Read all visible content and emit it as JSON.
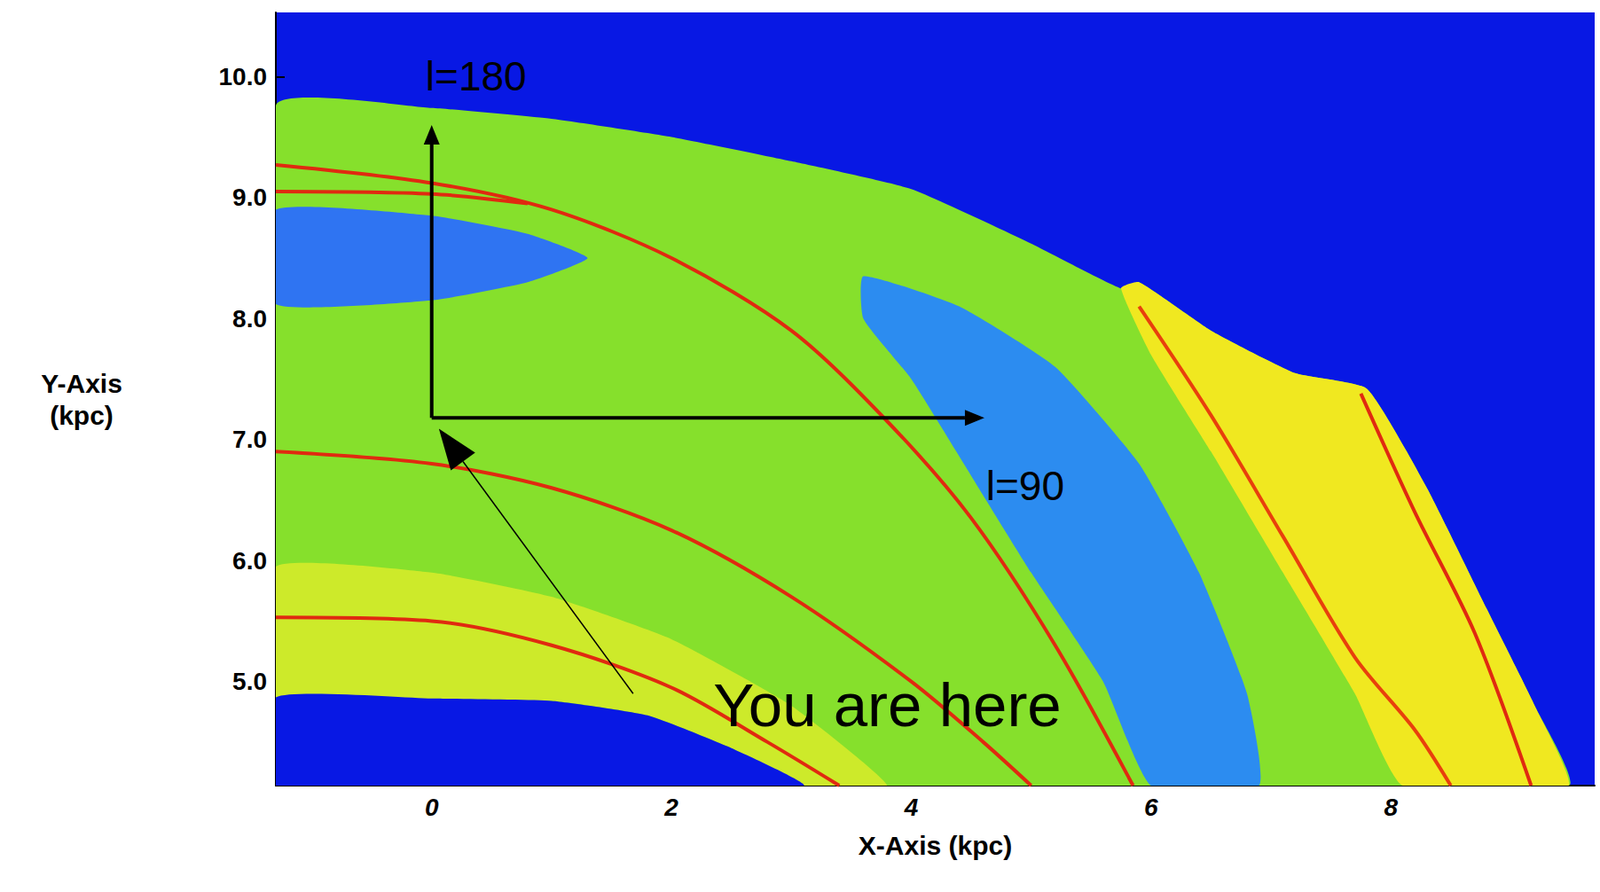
{
  "chart_data": {
    "type": "line",
    "xlabel": "X-Axis (kpc)",
    "ylabel": "Y-Axis (kpc)",
    "xlim": [
      -1.3,
      9.7
    ],
    "ylim": [
      4.14,
      10.53
    ],
    "xticks": [
      0,
      2,
      4,
      6,
      8
    ],
    "yticks": [
      {
        "value": 5,
        "label": "5.0"
      },
      {
        "value": 6,
        "label": "6.0"
      },
      {
        "value": 7,
        "label": "7.0"
      },
      {
        "value": 8,
        "label": "8.0"
      },
      {
        "value": 9,
        "label": "9.0"
      },
      {
        "value": 10,
        "label": "10.0"
      }
    ],
    "grid": false,
    "regions": [
      {
        "color": "#86e02c",
        "x": [
          -1.3,
          0,
          1,
          2,
          3,
          4,
          5,
          5.75,
          5.9,
          6.5,
          7.2,
          7.8,
          8.3,
          8.8,
          9.2,
          9.48,
          -1.3
        ],
        "values": [
          9.76,
          9.74,
          9.65,
          9.5,
          9.3,
          9.07,
          8.62,
          8.25,
          8.3,
          7.9,
          7.55,
          7.42,
          6.6,
          5.6,
          4.8,
          4.14,
          4.14
        ]
      },
      {
        "color": "#cdea2a",
        "x": [
          -1.3,
          0,
          1,
          2,
          3,
          3.8,
          3.1,
          2.5,
          1.8,
          1,
          -1.3
        ],
        "values": [
          5.95,
          5.9,
          5.7,
          5.35,
          4.8,
          4.14,
          4.14,
          4.45,
          4.72,
          4.84,
          4.87
        ]
      },
      {
        "color": "#0818e4",
        "x": [
          -1.3,
          0,
          1,
          1.8,
          2.5,
          3.1,
          -1.3
        ],
        "values": [
          4.87,
          4.86,
          4.84,
          4.72,
          4.45,
          4.14,
          4.14
        ]
      },
      {
        "color": "#2f74f2",
        "x": [
          -1.3,
          0,
          0.8,
          1.3,
          0.8,
          0,
          -1.3
        ],
        "values": [
          8.9,
          8.85,
          8.7,
          8.5,
          8.3,
          8.15,
          8.12
        ]
      },
      {
        "color": "#2c8cf0",
        "x": [
          3.6,
          4.4,
          5.2,
          5.9,
          6.4,
          6.8,
          6.9,
          6.0,
          5.6,
          5.0,
          4.5,
          4.0,
          3.6
        ],
        "values": [
          8.35,
          8.1,
          7.6,
          6.8,
          5.9,
          4.9,
          4.14,
          4.14,
          5.0,
          5.9,
          6.7,
          7.5,
          8.0
        ]
      },
      {
        "color": "#f0e820",
        "x": [
          5.75,
          5.9,
          6.5,
          7.2,
          7.8,
          8.3,
          8.8,
          9.2,
          9.48,
          8.1,
          7.7,
          7.1,
          6.5,
          6.0
        ],
        "values": [
          8.25,
          8.3,
          7.9,
          7.55,
          7.42,
          6.6,
          5.6,
          4.8,
          4.14,
          4.14,
          4.9,
          5.9,
          6.9,
          7.7
        ]
      }
    ],
    "series": [
      {
        "color": "#e02a10",
        "x": [
          -1.3,
          0,
          1,
          2,
          3,
          3.8,
          4.5,
          5.2,
          5.85
        ],
        "values": [
          9.27,
          9.12,
          8.9,
          8.5,
          7.9,
          7.15,
          6.35,
          5.3,
          4.14
        ]
      },
      {
        "color": "#e02a10",
        "x": [
          -1.3,
          0,
          0.8
        ],
        "values": [
          9.05,
          9.03,
          8.95
        ]
      },
      {
        "color": "#e02a10",
        "x": [
          -1.3,
          0,
          1,
          2,
          3,
          4,
          4.6,
          5.0
        ],
        "values": [
          6.9,
          6.8,
          6.6,
          6.25,
          5.7,
          5.0,
          4.5,
          4.14
        ]
      },
      {
        "color": "#e02a10",
        "x": [
          -1.3,
          0,
          1,
          2,
          2.8,
          3.4
        ],
        "values": [
          5.53,
          5.5,
          5.3,
          4.95,
          4.5,
          4.14
        ]
      },
      {
        "color": "#e8400c",
        "x": [
          5.9,
          6.5,
          7.1,
          7.7,
          8.2,
          8.5
        ],
        "values": [
          8.1,
          7.2,
          6.2,
          5.2,
          4.6,
          4.14
        ]
      },
      {
        "color": "#e02a10",
        "x": [
          7.75,
          8.2,
          8.7,
          9.17
        ],
        "values": [
          7.38,
          6.4,
          5.4,
          4.14
        ]
      }
    ],
    "annotations": [
      {
        "text": "l=180",
        "x": 0.37,
        "y": 10.0,
        "line_style": "solid",
        "arrow": {
          "from": [
            0,
            7.18
          ],
          "to": [
            0,
            9.6
          ]
        }
      },
      {
        "text": "l=90",
        "x": 4.95,
        "y": 6.62,
        "line_style": "solid",
        "arrow": {
          "from": [
            0,
            7.18
          ],
          "to": [
            4.61,
            7.18
          ]
        }
      },
      {
        "text": "You are here",
        "x": 3.8,
        "y": 4.8,
        "line_style": "thin",
        "arrow": {
          "from": [
            1.68,
            4.9
          ],
          "to": [
            0.06,
            7.09
          ]
        }
      }
    ]
  }
}
